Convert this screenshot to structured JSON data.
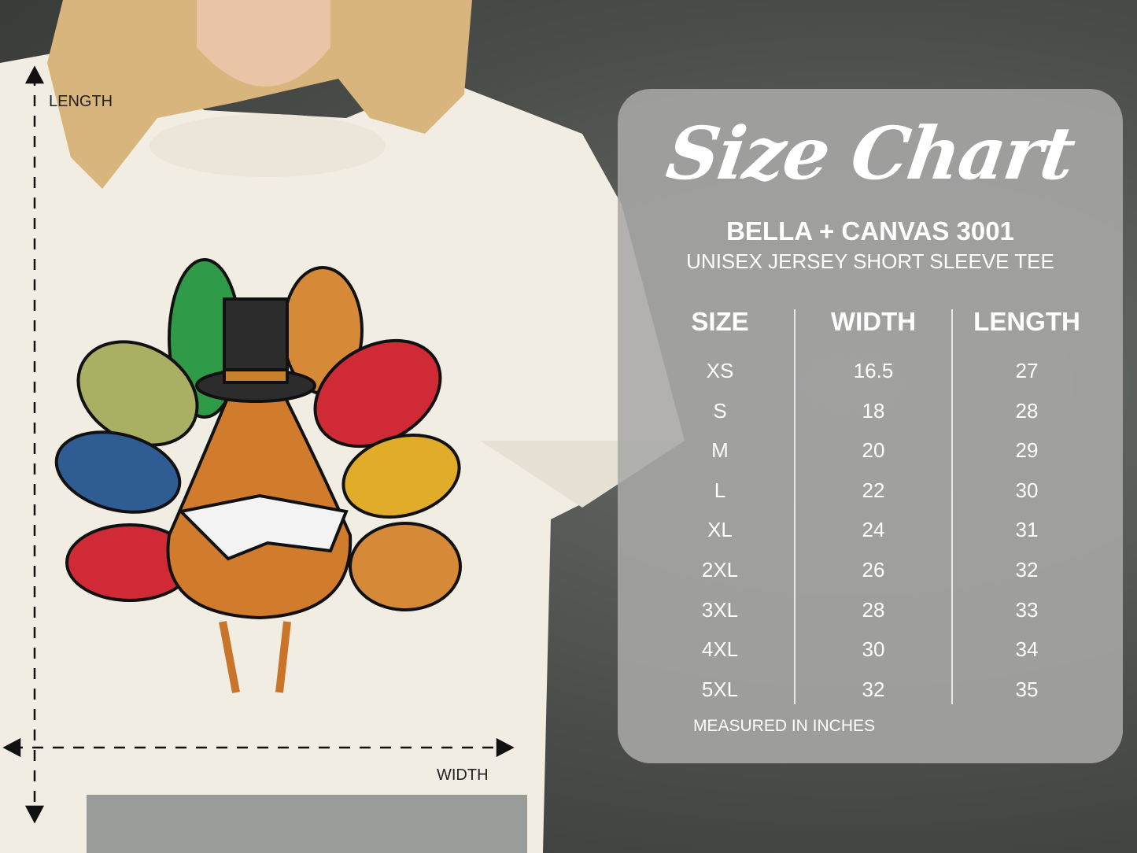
{
  "size_chart": {
    "title": "Size Chart",
    "brand": "BELLA + CANVAS 3001",
    "product": "UNISEX JERSEY SHORT SLEEVE TEE",
    "columns": [
      "SIZE",
      "WIDTH",
      "LENGTH"
    ],
    "sizes": [
      "XS",
      "S",
      "M",
      "L",
      "XL",
      "2XL",
      "3XL",
      "4XL",
      "5XL"
    ],
    "widths": [
      "16.5",
      "18",
      "20",
      "22",
      "24",
      "26",
      "28",
      "30",
      "32"
    ],
    "lengths": [
      "27",
      "28",
      "29",
      "30",
      "31",
      "32",
      "33",
      "34",
      "35"
    ],
    "note": "MEASURED IN INCHES"
  },
  "measure_labels": {
    "length": "LENGTH",
    "width": "WIDTH"
  },
  "colors": {
    "shirt": "#f1ede2",
    "panel": "#a8a9a7",
    "background": "#4a4d4a"
  }
}
